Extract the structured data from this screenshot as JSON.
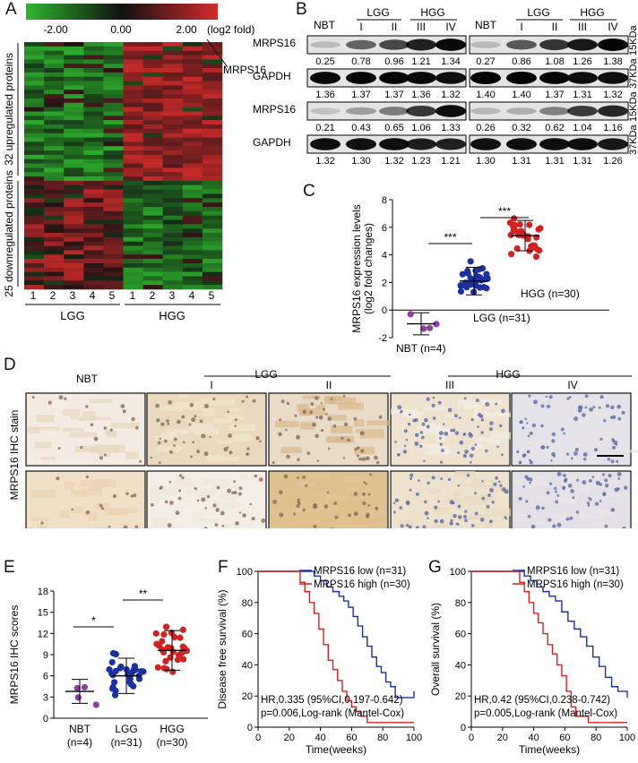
{
  "panels": {
    "A": "A",
    "B": "B",
    "C": "C",
    "D": "D",
    "E": "E",
    "F": "F",
    "G": "G"
  },
  "panelA": {
    "scale_ticks": [
      "-2.00",
      "0.00",
      "2.00"
    ],
    "scale_unit": "(log2 fold)",
    "callout": "MRPS16",
    "up_label": "32 upregulated proteins",
    "down_label": "25 downregulated proteins",
    "lgg_samples": [
      "1",
      "2",
      "3",
      "4",
      "5"
    ],
    "hgg_samples": [
      "1",
      "2",
      "3",
      "4",
      "5"
    ],
    "group_lgg": "LGG",
    "group_hgg": "HGG",
    "colors": {
      "low": "#2db52d",
      "mid": "#111111",
      "high": "#d22b2b"
    }
  },
  "panelB": {
    "header": {
      "nbt": "NBT",
      "lgg": "LGG",
      "hgg": "HGG",
      "grades": [
        "I",
        "II",
        "III",
        "IV"
      ]
    },
    "blots": [
      {
        "label": "MRPS16",
        "values_left": [
          "0.25",
          "0.78",
          "0.96",
          "1.21",
          "1.34"
        ],
        "values_right": [
          "0.27",
          "0.86",
          "1.08",
          "1.26",
          "1.38"
        ],
        "kda": "15KDa"
      },
      {
        "label": "GAPDH",
        "values_left": [
          "1.36",
          "1.37",
          "1.37",
          "1.36",
          "1.32"
        ],
        "values_right": [
          "1.40",
          "1.40",
          "1.37",
          "1.31",
          "1.32"
        ],
        "kda": "37KDa"
      },
      {
        "label": "MRPS16",
        "values_left": [
          "0.21",
          "0.43",
          "0.65",
          "1.06",
          "1.33"
        ],
        "values_right": [
          "0.26",
          "0.32",
          "0.62",
          "1.04",
          "1.16"
        ],
        "kda": "15KDa"
      },
      {
        "label": "GAPDH",
        "values_left": [
          "1.32",
          "1.30",
          "1.32",
          "1.23",
          "1.21"
        ],
        "values_right": [
          "1.30",
          "1.31",
          "1.31",
          "1.31",
          "1.26"
        ],
        "kda": "37KDa"
      }
    ]
  },
  "panelD": {
    "headers": {
      "nbt": "NBT",
      "lgg": "LGG",
      "hgg": "HGG",
      "grades": [
        "I",
        "II",
        "III",
        "IV"
      ]
    },
    "side_label": "MRPS16 IHC stain"
  },
  "chart_data": [
    {
      "id": "C",
      "type": "scatter",
      "ylabel": "MRPS16 expression levels\n(log2 fold changes)",
      "ylim": [
        -2,
        8
      ],
      "yticks": [
        "-2",
        "0",
        "2",
        "4",
        "6",
        "8"
      ],
      "groups": [
        {
          "name": "NBT (n=4)",
          "n": 4,
          "mean": -1.0,
          "sd": 0.8,
          "color": "#8b3fa0"
        },
        {
          "name": "LGG (n=31)",
          "n": 31,
          "mean": 2.1,
          "sd": 1.0,
          "color": "#1c2f9e"
        },
        {
          "name": "HGG (n=30)",
          "n": 30,
          "mean": 5.4,
          "sd": 1.1,
          "color": "#d42020"
        }
      ],
      "annotations": [
        "***",
        "***"
      ]
    },
    {
      "id": "E",
      "type": "scatter",
      "ylabel": "MRPS16 IHC scores",
      "ylim": [
        0,
        18
      ],
      "yticks": [
        "0",
        "3",
        "6",
        "9",
        "12",
        "15",
        "18"
      ],
      "groups": [
        {
          "name": "NBT",
          "sub": "(n=4)",
          "n": 4,
          "mean": 3.8,
          "sd": 1.7,
          "color": "#8b3fa0"
        },
        {
          "name": "LGG",
          "sub": "(n=31)",
          "n": 31,
          "mean": 6.0,
          "sd": 2.5,
          "color": "#1c2f9e"
        },
        {
          "name": "HGG",
          "sub": "(n=30)",
          "n": 30,
          "mean": 9.6,
          "sd": 2.8,
          "color": "#d42020"
        }
      ],
      "annotations": [
        "*",
        "**"
      ]
    },
    {
      "id": "F",
      "type": "line",
      "ylabel": "Disease free survival (%)",
      "xlabel": "Time(weeks)",
      "xlim": [
        0,
        100
      ],
      "ylim": [
        0,
        100
      ],
      "xticks": [
        "0",
        "20",
        "40",
        "60",
        "80",
        "100"
      ],
      "yticks": [
        "0",
        "20",
        "40",
        "60",
        "80",
        "100"
      ],
      "series": [
        {
          "name": "MRPS16 low (n=31)",
          "color": "#1c2f9e",
          "x": [
            0,
            30,
            36,
            40,
            44,
            48,
            52,
            55,
            58,
            61,
            64,
            67,
            70,
            73,
            76,
            79,
            82,
            85,
            88,
            92,
            100
          ],
          "y": [
            100,
            100,
            97,
            94,
            90,
            87,
            84,
            81,
            77,
            71,
            65,
            58,
            52,
            45,
            39,
            35,
            29,
            26,
            19,
            19,
            23
          ]
        },
        {
          "name": "MRPS16 high (n=30)",
          "color": "#d42020",
          "x": [
            0,
            24,
            27,
            30,
            33,
            36,
            39,
            42,
            45,
            48,
            51,
            54,
            57,
            60,
            63,
            66,
            70,
            75,
            100
          ],
          "y": [
            100,
            100,
            93,
            87,
            80,
            73,
            63,
            53,
            43,
            37,
            30,
            23,
            17,
            13,
            10,
            7,
            3,
            3,
            3
          ]
        }
      ],
      "text": [
        "HR,0.335 (95%CI,0.197-0.642)",
        "p=0.006,Log-rank (Mantel-Cox)"
      ]
    },
    {
      "id": "G",
      "type": "line",
      "ylabel": "Overall survival (%)",
      "xlabel": "Time(weeks)",
      "xlim": [
        0,
        100
      ],
      "ylim": [
        0,
        100
      ],
      "xticks": [
        "0",
        "20",
        "40",
        "60",
        "80",
        "100"
      ],
      "yticks": [
        "0",
        "20",
        "40",
        "60",
        "80",
        "100"
      ],
      "series": [
        {
          "name": "MRPS16 low (n=31)",
          "color": "#1c2f9e",
          "x": [
            0,
            30,
            34,
            38,
            42,
            46,
            50,
            54,
            58,
            62,
            66,
            70,
            74,
            78,
            82,
            86,
            90,
            94,
            100
          ],
          "y": [
            100,
            100,
            97,
            94,
            90,
            87,
            84,
            81,
            74,
            68,
            63,
            58,
            52,
            45,
            39,
            32,
            26,
            23,
            19
          ]
        },
        {
          "name": "MRPS16 high (n=30)",
          "color": "#d42020",
          "x": [
            0,
            28,
            31,
            34,
            37,
            40,
            43,
            46,
            49,
            52,
            55,
            58,
            61,
            64,
            67,
            75,
            100
          ],
          "y": [
            100,
            100,
            93,
            87,
            80,
            73,
            67,
            60,
            53,
            47,
            40,
            33,
            23,
            13,
            7,
            3,
            3
          ]
        }
      ],
      "text": [
        "HR,0.42 (95%CI,0.238-0.742)",
        "p=0.005,Log-rank (Mantel-Cox)"
      ]
    }
  ]
}
